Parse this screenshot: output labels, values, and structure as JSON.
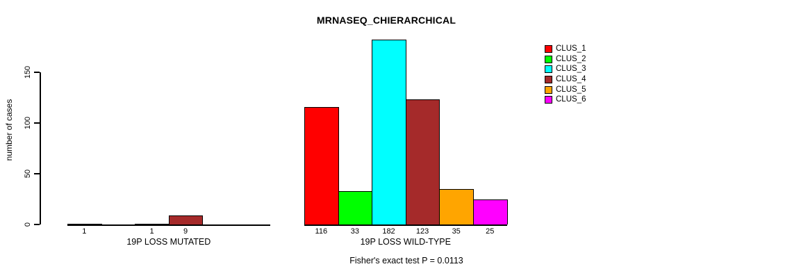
{
  "chart_data": {
    "type": "bar",
    "title": "MRNASEQ_CHIERARCHICAL",
    "ylabel": "number of cases",
    "xlabel": "",
    "yticks": [
      0,
      50,
      100,
      150
    ],
    "ylim": [
      0,
      182
    ],
    "grid": false,
    "legend_position": "right",
    "categories": [
      "19P LOSS MUTATED",
      "19P LOSS WILD-TYPE"
    ],
    "series": [
      {
        "name": "CLUS_1",
        "color": "#FF0000",
        "values": [
          1,
          116
        ]
      },
      {
        "name": "CLUS_2",
        "color": "#00FF00",
        "values": [
          0,
          33
        ]
      },
      {
        "name": "CLUS_3",
        "color": "#00FFFF",
        "values": [
          1,
          182
        ]
      },
      {
        "name": "CLUS_4",
        "color": "#A52A2A",
        "values": [
          9,
          123
        ]
      },
      {
        "name": "CLUS_5",
        "color": "#FFA500",
        "values": [
          0,
          35
        ]
      },
      {
        "name": "CLUS_6",
        "color": "#FF00FF",
        "values": [
          0,
          25
        ]
      }
    ],
    "bar_value_labels": {
      "19P LOSS MUTATED": [
        1,
        null,
        1,
        9,
        null,
        null
      ],
      "19P LOSS WILD-TYPE": [
        116,
        33,
        182,
        123,
        35,
        25
      ]
    },
    "annotation": "Fisher's exact test P = 0.0113"
  }
}
